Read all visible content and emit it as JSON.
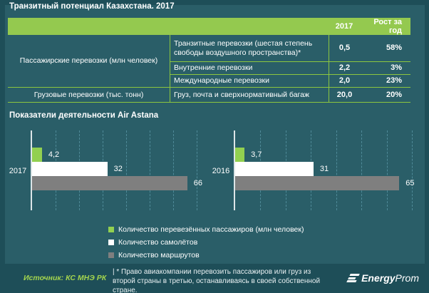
{
  "title": "Транзитный потенциал Казахстана. 2017",
  "colors": {
    "background": "#2a5e68",
    "frame": "#1e4e58",
    "header_green": "#94c94f",
    "border_green": "#8cc63f",
    "bright_green": "#92d050",
    "gray": "#7f7f7f",
    "white": "#ffffff",
    "source_green": "#a4d54e"
  },
  "table": {
    "header": {
      "year": "2017",
      "growth": "Рост за год"
    },
    "groups": [
      {
        "label": "Пассажирские перевозки (млн человек)",
        "rows": [
          {
            "name": "Транзитные перевозки (шестая степень свободы воздушного пространства)*",
            "value": "0,5",
            "growth": "58%"
          },
          {
            "name": "Внутренние перевозки",
            "value": "2,2",
            "growth": "3%"
          },
          {
            "name": "Международные перевозки",
            "value": "2,0",
            "growth": "23%"
          }
        ]
      },
      {
        "label": "Грузовые перевозки (тыс. тонн)",
        "rows": [
          {
            "name": "Груз, почта и сверхнормативный багаж",
            "value": "20,0",
            "growth": "20%"
          }
        ]
      }
    ]
  },
  "section_title": "Показатели деятельности  Air Astana",
  "chart_data": {
    "type": "bar",
    "orientation": "horizontal",
    "title": "Показатели деятельности Air Astana",
    "categories": [
      "2017",
      "2016"
    ],
    "series": [
      {
        "name": "Количество перевезённых пассажиров (млн человек)",
        "color": "#92d050",
        "values": [
          4.2,
          3.7
        ],
        "labels": [
          "4,2",
          "3,7"
        ]
      },
      {
        "name": "Количество самолётов",
        "color": "#ffffff",
        "values": [
          32,
          31
        ],
        "labels": [
          "32",
          "31"
        ]
      },
      {
        "name": "Количество маршрутов",
        "color": "#7f7f7f",
        "values": [
          66,
          65
        ],
        "labels": [
          "66",
          "65"
        ]
      }
    ],
    "xlim": [
      0,
      70
    ],
    "gridlines": "vertical dashed every 10 units",
    "legend_position": "bottom"
  },
  "legend": [
    {
      "label": "Количество перевезённых пассажиров (млн человек)",
      "color": "#92d050"
    },
    {
      "label": "Количество самолётов",
      "color": "#ffffff"
    },
    {
      "label": "Количество маршрутов",
      "color": "#7f7f7f"
    }
  ],
  "footer": {
    "source": "Источник: КС МНЭ РК",
    "note": "| * Право авиакомпании перевозить пассажиров или груз из второй страны в третью, останавливаясь в своей собственной стране.",
    "logo_bold": "Energy",
    "logo_light": "Prom"
  }
}
